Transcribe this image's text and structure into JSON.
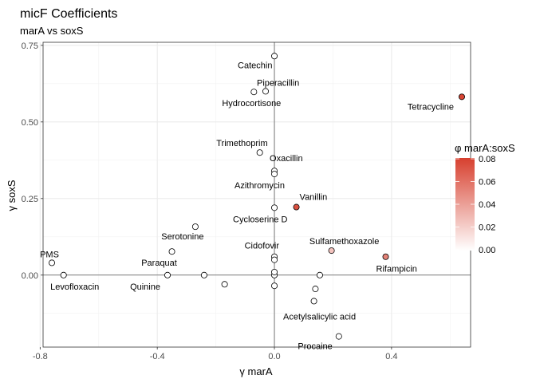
{
  "chart_data": {
    "type": "scatter",
    "title": "micF Coefficients",
    "subtitle": "marA vs soxS",
    "xlabel": "γ marA",
    "ylabel": "γ soxS",
    "xlim": [
      -0.79,
      0.67
    ],
    "ylim": [
      -0.235,
      0.76
    ],
    "xticks": [
      -0.8,
      -0.4,
      0.0,
      0.4
    ],
    "xtick_labels": [
      "-0.8",
      "-0.4",
      "0.0",
      "0.4"
    ],
    "yticks": [
      0.0,
      0.25,
      0.5,
      0.75
    ],
    "ytick_labels": [
      "0.00",
      "0.25",
      "0.50",
      "0.75"
    ],
    "grid": true,
    "reference_lines": {
      "x": 0,
      "y": 0
    },
    "color_scale": {
      "title": "φ marA:soxS",
      "low_color": "#ffffff",
      "high_color": "#d7402f",
      "range": [
        0,
        0.08
      ],
      "ticks": [
        0.0,
        0.02,
        0.04,
        0.06,
        0.08
      ],
      "tick_labels": [
        "0.00",
        "0.02",
        "0.04",
        "0.06",
        "0.08"
      ],
      "legend_position": "right"
    },
    "points": [
      {
        "x": 0.0,
        "y": 0.715,
        "phi": 0,
        "label": "Catechin",
        "label_pos": "below-left"
      },
      {
        "x": -0.07,
        "y": 0.598,
        "phi": 0,
        "label": "Hydrocortisone",
        "label_pos": "below"
      },
      {
        "x": -0.03,
        "y": 0.6,
        "phi": 0,
        "label": "Piperacillin",
        "label_pos": "above-right"
      },
      {
        "x": 0.64,
        "y": 0.582,
        "phi": 0.078,
        "label": "Tetracycline",
        "label_pos": "below-left"
      },
      {
        "x": -0.05,
        "y": 0.4,
        "phi": 0,
        "label": "Trimethoprim",
        "label_pos": "above-left"
      },
      {
        "x": 0.0,
        "y": 0.34,
        "phi": 0,
        "label": "Oxacillin",
        "label_pos": "above-right"
      },
      {
        "x": 0.0,
        "y": 0.33,
        "phi": 0,
        "label": "Azithromycin",
        "label_pos": "below-left"
      },
      {
        "x": 0.075,
        "y": 0.222,
        "phi": 0.073,
        "label": "Vanillin",
        "label_pos": "above-right"
      },
      {
        "x": 0.0,
        "y": 0.22,
        "phi": 0,
        "label": "Cycloserine D",
        "label_pos": "below-left"
      },
      {
        "x": -0.27,
        "y": 0.158,
        "phi": 0,
        "label": "Serotonine",
        "label_pos": "below-left"
      },
      {
        "x": -0.35,
        "y": 0.077,
        "phi": 0,
        "label": "Paraquat",
        "label_pos": "below-left"
      },
      {
        "x": 0.195,
        "y": 0.08,
        "phi": 0.025,
        "label": "Sulfamethoxazole",
        "label_pos": "above"
      },
      {
        "x": 0.38,
        "y": 0.06,
        "phi": 0.052,
        "label": "Rifampicin",
        "label_pos": "below-left"
      },
      {
        "x": 0.0,
        "y": 0.06,
        "phi": 0,
        "label": "Cidofovir",
        "label_pos": "above-left"
      },
      {
        "x": 0.0,
        "y": 0.05,
        "phi": 0,
        "label": "",
        "label_pos": "none"
      },
      {
        "x": -0.76,
        "y": 0.04,
        "phi": 0,
        "label": "PMS",
        "label_pos": "above-left"
      },
      {
        "x": -0.72,
        "y": 0.0,
        "phi": 0,
        "label": "Levofloxacin",
        "label_pos": "below"
      },
      {
        "x": -0.365,
        "y": 0.0,
        "phi": 0,
        "label": "Quinine",
        "label_pos": "below-left"
      },
      {
        "x": -0.24,
        "y": 0.0,
        "phi": 0,
        "label": "",
        "label_pos": "none"
      },
      {
        "x": 0.0,
        "y": 0.0,
        "phi": 0,
        "label": "",
        "label_pos": "none"
      },
      {
        "x": 0.0,
        "y": 0.01,
        "phi": 0,
        "label": "",
        "label_pos": "none"
      },
      {
        "x": 0.155,
        "y": 0.0,
        "phi": 0,
        "label": "",
        "label_pos": "none"
      },
      {
        "x": -0.17,
        "y": -0.03,
        "phi": 0,
        "label": "",
        "label_pos": "none"
      },
      {
        "x": 0.0,
        "y": -0.035,
        "phi": 0,
        "label": "",
        "label_pos": "none"
      },
      {
        "x": 0.14,
        "y": -0.045,
        "phi": 0,
        "label": "",
        "label_pos": "none"
      },
      {
        "x": 0.135,
        "y": -0.085,
        "phi": 0,
        "label": "Acetylsalicylic acid",
        "label_pos": "below"
      },
      {
        "x": 0.22,
        "y": -0.2,
        "phi": 0,
        "label": "Procaine",
        "label_pos": "below-left"
      }
    ]
  }
}
